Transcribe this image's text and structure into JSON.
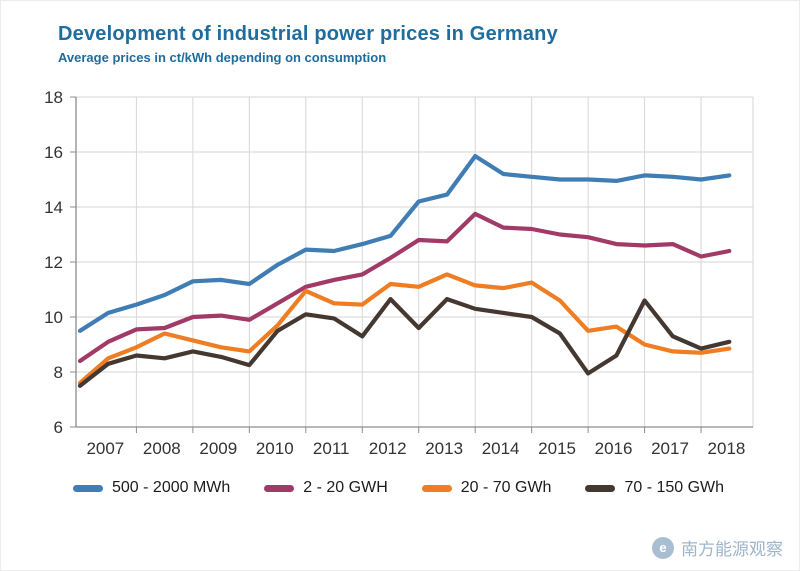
{
  "watermark": {
    "text": "南方能源观察"
  },
  "colors": {
    "title": "#1e6d9d",
    "grid": "#d6d6d6",
    "axis": "#8c8c8c",
    "tick_label": "#333333",
    "watermark": "#9fb6c9"
  },
  "chart_data": {
    "type": "line",
    "title": "Development of industrial power prices in Germany",
    "subtitle": "Average prices in ct/kWh depending on consumption",
    "xlabel": "",
    "ylabel": "ct/kWh",
    "x_start": 2007,
    "x_step": 0.5,
    "xlim": [
      2006.93,
      2018.92
    ],
    "ylim": [
      6,
      18
    ],
    "yticks": [
      6,
      8,
      10,
      12,
      14,
      16,
      18
    ],
    "year_gridlines": [
      2008,
      2009,
      2010,
      2011,
      2012,
      2013,
      2014,
      2015,
      2016,
      2017,
      2018
    ],
    "year_labels": [
      "2007",
      "2008",
      "2009",
      "2010",
      "2011",
      "2012",
      "2013",
      "2014",
      "2015",
      "2016",
      "2017",
      "2018"
    ],
    "grid": true,
    "legend_position": "bottom",
    "series": [
      {
        "name": "500 - 2000 MWh",
        "color": "#3f7db4",
        "values": [
          9.5,
          10.15,
          10.45,
          10.8,
          11.3,
          11.35,
          11.2,
          11.9,
          12.45,
          12.4,
          12.65,
          12.95,
          14.2,
          14.45,
          15.85,
          15.2,
          15.1,
          15.0,
          15.0,
          14.95,
          15.15,
          15.1,
          15.0,
          15.15
        ]
      },
      {
        "name": "2 - 20 GWH",
        "color": "#a23a68",
        "values": [
          8.4,
          9.1,
          9.55,
          9.6,
          10.0,
          10.05,
          9.9,
          10.5,
          11.1,
          11.35,
          11.55,
          12.15,
          12.8,
          12.75,
          13.75,
          13.25,
          13.2,
          13.0,
          12.9,
          12.65,
          12.6,
          12.65,
          12.2,
          12.4
        ]
      },
      {
        "name": "20 - 70 GWh",
        "color": "#ee7d23",
        "values": [
          7.6,
          8.5,
          8.9,
          9.4,
          9.15,
          8.9,
          8.75,
          9.7,
          10.95,
          10.5,
          10.45,
          11.2,
          11.1,
          11.55,
          11.15,
          11.05,
          11.25,
          10.6,
          9.5,
          9.65,
          9.0,
          8.75,
          8.7,
          8.85
        ]
      },
      {
        "name": "70 - 150 GWh",
        "color": "#453831",
        "values": [
          7.5,
          8.3,
          8.6,
          8.5,
          8.75,
          8.55,
          8.25,
          9.5,
          10.1,
          9.95,
          9.3,
          10.65,
          9.6,
          10.65,
          10.3,
          10.15,
          10.0,
          9.4,
          7.95,
          8.6,
          10.6,
          9.3,
          8.85,
          9.1
        ]
      }
    ]
  }
}
